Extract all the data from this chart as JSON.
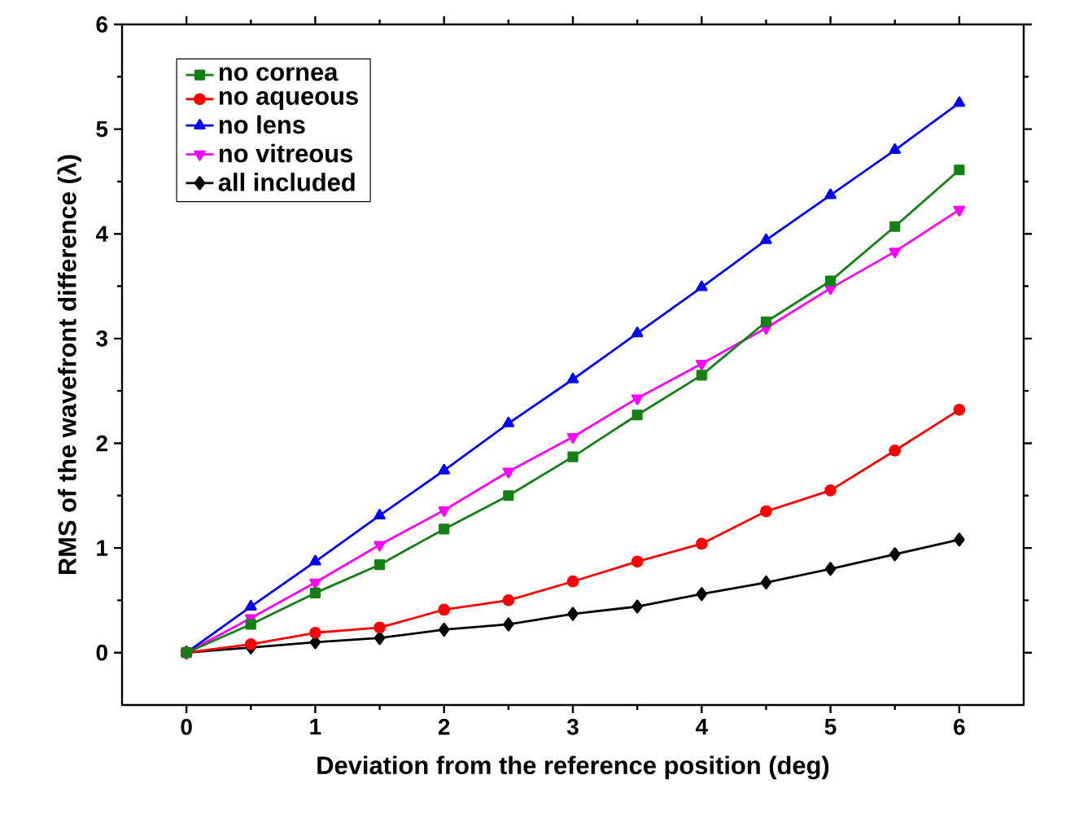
{
  "chart_data": {
    "type": "line",
    "xlabel": "Deviation from the reference position (deg)",
    "ylabel": "RMS of the wavefront difference (λ)",
    "x": [
      0,
      0.5,
      1,
      1.5,
      2,
      2.5,
      3,
      3.5,
      4,
      4.5,
      5,
      5.5,
      6
    ],
    "xlim": [
      -0.5,
      6.5
    ],
    "xticks": [
      0,
      1,
      2,
      3,
      4,
      5,
      6
    ],
    "ylim": [
      -0.5,
      6
    ],
    "yticks": [
      0,
      1,
      2,
      3,
      4,
      5,
      6
    ],
    "legend": "top left",
    "grid": false,
    "line_style": "solid",
    "series": [
      {
        "name": "no cornea",
        "color": "#138013",
        "marker": "square",
        "values": [
          0,
          0.27,
          0.57,
          0.84,
          1.18,
          1.5,
          1.87,
          2.27,
          2.65,
          3.16,
          3.55,
          4.07,
          4.61
        ]
      },
      {
        "name": "no aqueous",
        "color": "#ff0000",
        "marker": "circle",
        "values": [
          0,
          0.08,
          0.19,
          0.24,
          0.41,
          0.5,
          0.68,
          0.87,
          1.04,
          1.35,
          1.55,
          1.93,
          2.32
        ]
      },
      {
        "name": "no lens",
        "color": "#0000ff",
        "marker": "triangle",
        "values": [
          0,
          0.44,
          0.87,
          1.31,
          1.74,
          2.19,
          2.61,
          3.05,
          3.49,
          3.94,
          4.37,
          4.8,
          5.25
        ]
      },
      {
        "name": "no vitreous",
        "color": "#ff00ff",
        "marker": "triangle-down",
        "values": [
          0,
          0.33,
          0.67,
          1.03,
          1.36,
          1.73,
          2.06,
          2.43,
          2.76,
          3.1,
          3.48,
          3.83,
          4.23
        ]
      },
      {
        "name": "all included",
        "color": "#000000",
        "marker": "diamond",
        "values": [
          0,
          0.05,
          0.1,
          0.14,
          0.22,
          0.27,
          0.37,
          0.44,
          0.56,
          0.67,
          0.8,
          0.94,
          1.08
        ]
      }
    ]
  }
}
